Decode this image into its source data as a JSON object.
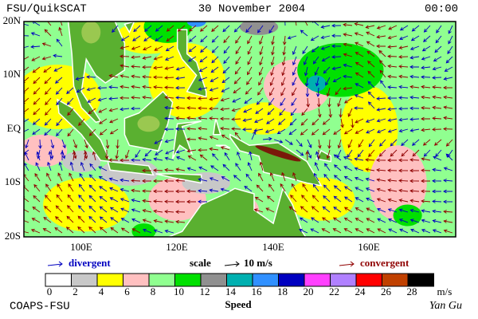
{
  "header": {
    "title": "FSU/QuikSCAT",
    "date": "30 November 2004",
    "time": "00:00"
  },
  "map": {
    "lat_labels": [
      "20N",
      "10N",
      "EQ",
      "10S",
      "20S"
    ],
    "lon_labels": [
      "100E",
      "120E",
      "140E",
      "160E"
    ]
  },
  "legend": {
    "divergent": "divergent",
    "scale": "scale",
    "scale_value": "10 m/s",
    "convergent": "convergent"
  },
  "colorbar": {
    "labels": [
      "0",
      "2",
      "4",
      "6",
      "8",
      "10",
      "12",
      "14",
      "16",
      "18",
      "20",
      "22",
      "24",
      "26",
      "28"
    ],
    "colors": [
      "#ffffff",
      "#c8c8c8",
      "#ffff00",
      "#ffc0c0",
      "#90ff90",
      "#00e000",
      "#909090",
      "#00b0b0",
      "#3090ff",
      "#0000c0",
      "#ff40ff",
      "#b080ff",
      "#ff0000",
      "#c04000",
      "#000000"
    ],
    "unit": "m/s",
    "title": "Speed"
  },
  "footer": {
    "left": "COAPS-FSU",
    "right": "Yan Gu"
  }
}
